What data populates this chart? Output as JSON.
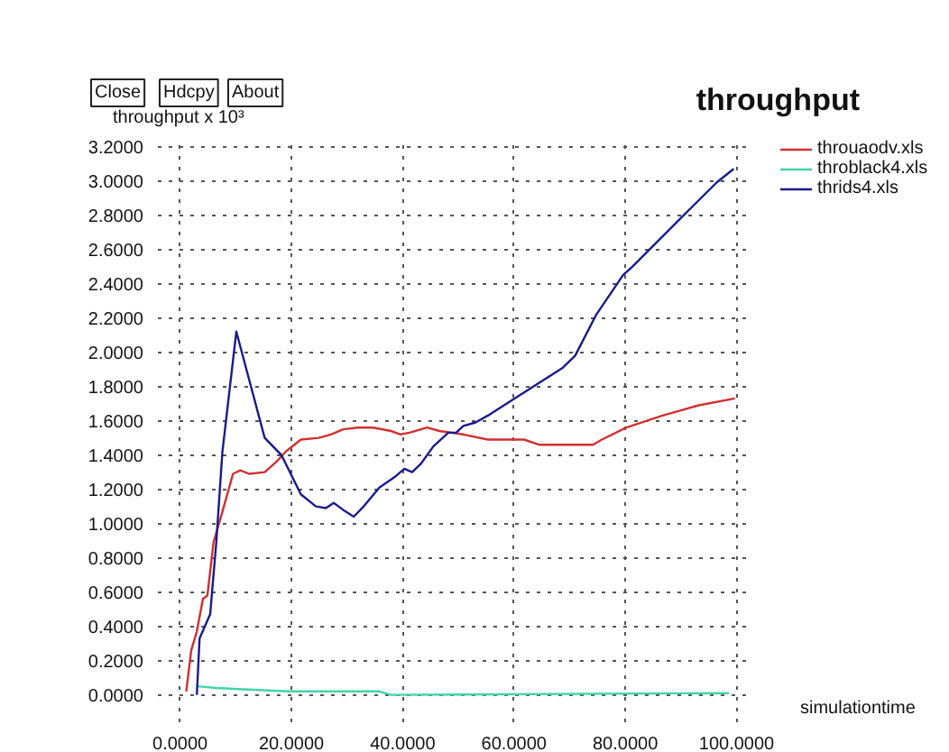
{
  "chart_data": {
    "type": "line",
    "title": "throughput",
    "ylabel": "throughput x 10³",
    "xlabel": "simulationtime",
    "annotations": [
      "Close",
      "Hdcpy",
      "About"
    ],
    "xlim": [
      -4,
      103
    ],
    "ylim": [
      -0.16,
      3.24
    ],
    "xticks": [
      {
        "value": 0,
        "label": "0.0000"
      },
      {
        "value": 20,
        "label": "20.0000"
      },
      {
        "value": 40,
        "label": "40.0000"
      },
      {
        "value": 60,
        "label": "60.0000"
      },
      {
        "value": 80,
        "label": "80.0000"
      },
      {
        "value": 100,
        "label": "100.0000"
      }
    ],
    "yticks": [
      {
        "value": 0,
        "label": "0.0000"
      },
      {
        "value": 0.2,
        "label": "0.2000"
      },
      {
        "value": 0.4,
        "label": "0.4000"
      },
      {
        "value": 0.6,
        "label": "0.6000"
      },
      {
        "value": 0.8,
        "label": "0.8000"
      },
      {
        "value": 1.0,
        "label": "1.0000"
      },
      {
        "value": 1.2,
        "label": "1.2000"
      },
      {
        "value": 1.4,
        "label": "1.4000"
      },
      {
        "value": 1.6,
        "label": "1.6000"
      },
      {
        "value": 1.8,
        "label": "1.8000"
      },
      {
        "value": 2.0,
        "label": "2.0000"
      },
      {
        "value": 2.2,
        "label": "2.2000"
      },
      {
        "value": 2.4,
        "label": "2.4000"
      },
      {
        "value": 2.6,
        "label": "2.6000"
      },
      {
        "value": 2.8,
        "label": "2.8000"
      },
      {
        "value": 3.0,
        "label": "3.0000"
      },
      {
        "value": 3.2,
        "label": "3.2000"
      }
    ],
    "grid": true,
    "legend": "top right",
    "line_style": "solid",
    "series": [
      {
        "name": "throuaodv.xls",
        "color": "#d03030",
        "x": [
          1.1,
          2.0,
          3.0,
          4.1,
          4.9,
          6.0,
          7.6,
          9.5,
          10.8,
          12.4,
          15.2,
          17.3,
          19.0,
          21.7,
          24.9,
          27.1,
          29.3,
          31.9,
          34.7,
          37.9,
          39.6,
          41.2,
          44.4,
          46.6,
          50.9,
          55.3,
          61.8,
          64.5,
          74.2,
          75.8,
          80.2,
          86.7,
          93.2,
          99.7
        ],
        "values": [
          0.02,
          0.26,
          0.37,
          0.56,
          0.58,
          0.89,
          1.07,
          1.29,
          1.31,
          1.29,
          1.3,
          1.36,
          1.42,
          1.49,
          1.5,
          1.52,
          1.55,
          1.56,
          1.56,
          1.54,
          1.52,
          1.53,
          1.56,
          1.54,
          1.52,
          1.49,
          1.49,
          1.46,
          1.46,
          1.49,
          1.56,
          1.63,
          1.69,
          1.73
        ]
      },
      {
        "name": "throblack4.xls",
        "color": "#3fd6a6",
        "x": [
          3.2,
          6.5,
          19.5,
          35.8,
          37.9,
          98.6
        ],
        "values": [
          0.05,
          0.04,
          0.02,
          0.02,
          0.0,
          0.01
        ]
      },
      {
        "name": "thrids4.xls",
        "color": "#1a1a8c",
        "x": [
          3.0,
          3.5,
          5.4,
          6.5,
          7.6,
          10.1,
          12.4,
          15.2,
          18.2,
          21.7,
          24.4,
          26.2,
          27.6,
          29.3,
          31.2,
          33.0,
          35.8,
          38.5,
          40.3,
          41.7,
          43.3,
          45.5,
          48.2,
          49.6,
          50.9,
          53.1,
          55.3,
          60.1,
          68.8,
          71.0,
          74.8,
          79.6,
          81.3,
          89.9,
          96.4,
          99.5
        ],
        "values": [
          0,
          0.33,
          0.47,
          0.89,
          1.42,
          2.12,
          1.84,
          1.5,
          1.4,
          1.17,
          1.1,
          1.09,
          1.12,
          1.08,
          1.04,
          1.1,
          1.21,
          1.27,
          1.32,
          1.3,
          1.35,
          1.45,
          1.53,
          1.53,
          1.57,
          1.59,
          1.63,
          1.73,
          1.91,
          1.98,
          2.22,
          2.45,
          2.5,
          2.78,
          2.99,
          3.07
        ]
      }
    ]
  }
}
